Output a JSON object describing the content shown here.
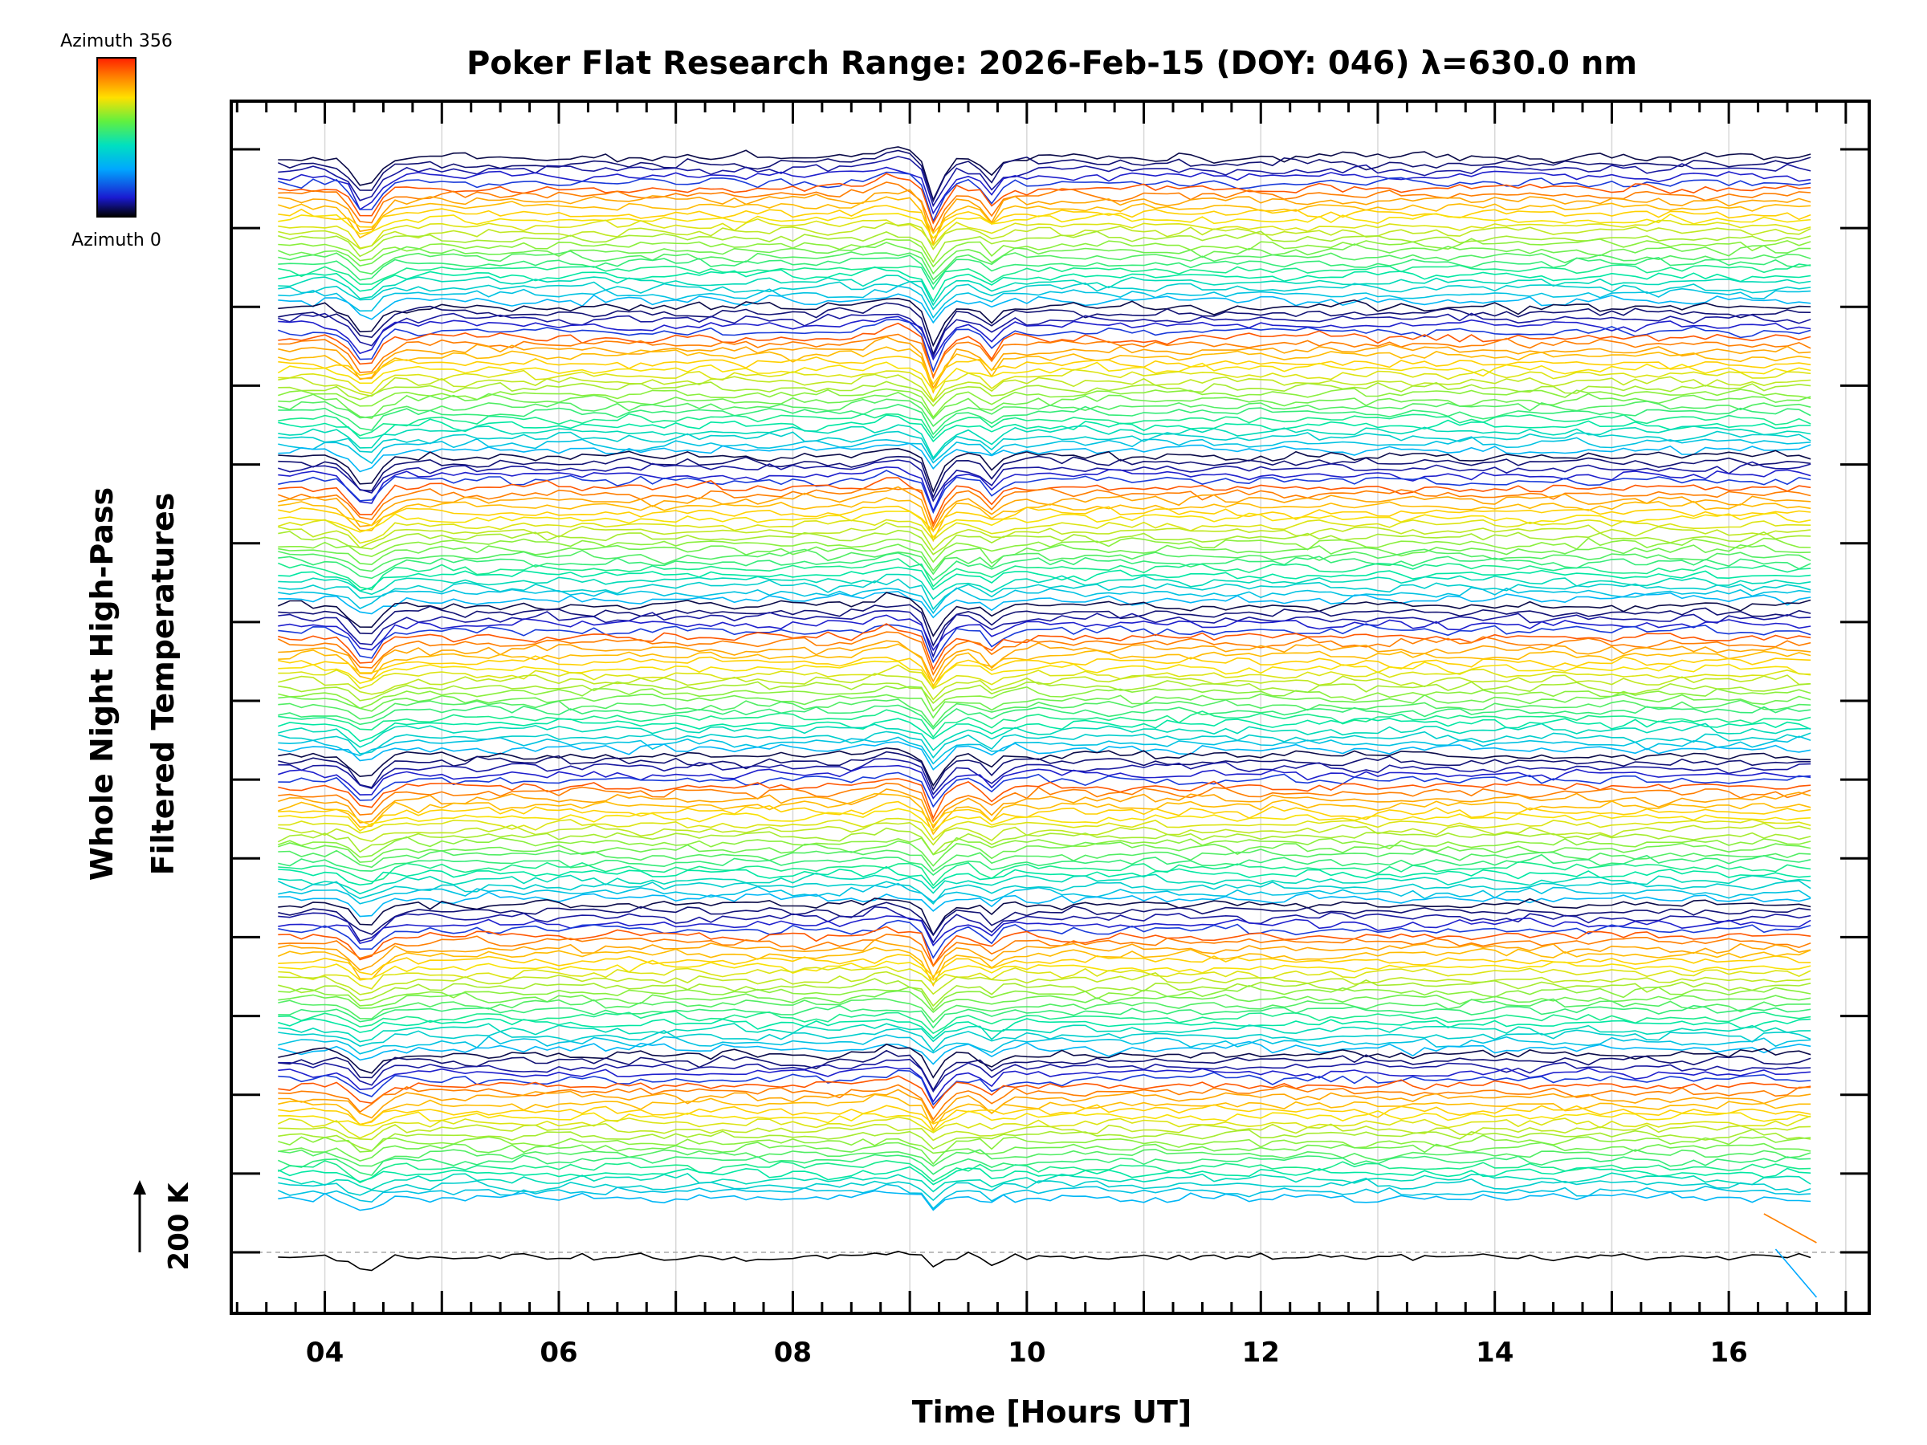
{
  "chart_data": {
    "type": "line",
    "title": "Poker Flat Research Range: 2026-Feb-15 (DOY: 046) λ=630.0 nm",
    "xlabel": "Time [Hours UT]",
    "ylabel_line1": "Whole Night High-Pass",
    "ylabel_line2": "Filtered Temperatures",
    "scale_label": "200 K",
    "xlim": [
      3.2,
      17.2
    ],
    "x_range": [
      3.6,
      16.75
    ],
    "x_step": 0.1,
    "x_ticks": [
      4,
      6,
      8,
      10,
      12,
      14,
      16
    ],
    "x_tick_labels": [
      "04",
      "06",
      "08",
      "10",
      "12",
      "14",
      "16"
    ],
    "colorbar": {
      "label_top": "Azimuth 356",
      "label_bottom": "Azimuth 0",
      "min": 0,
      "max": 356,
      "colors": [
        "#000000",
        "#2020d0",
        "#00b0ff",
        "#00e8a0",
        "#80f040",
        "#ffe000",
        "#ff8000",
        "#ff2000"
      ]
    },
    "series_description": "high-pass filtered temperature traces, one per azimuth, vertically offset and stacked into 7 azimuth sweeps plus a baseline trace",
    "groups": 7,
    "traces_per_group": 24,
    "events_hours_ut": [
      4.35,
      9.2,
      9.7
    ],
    "plot_background": "#ffffff",
    "grid": true
  }
}
